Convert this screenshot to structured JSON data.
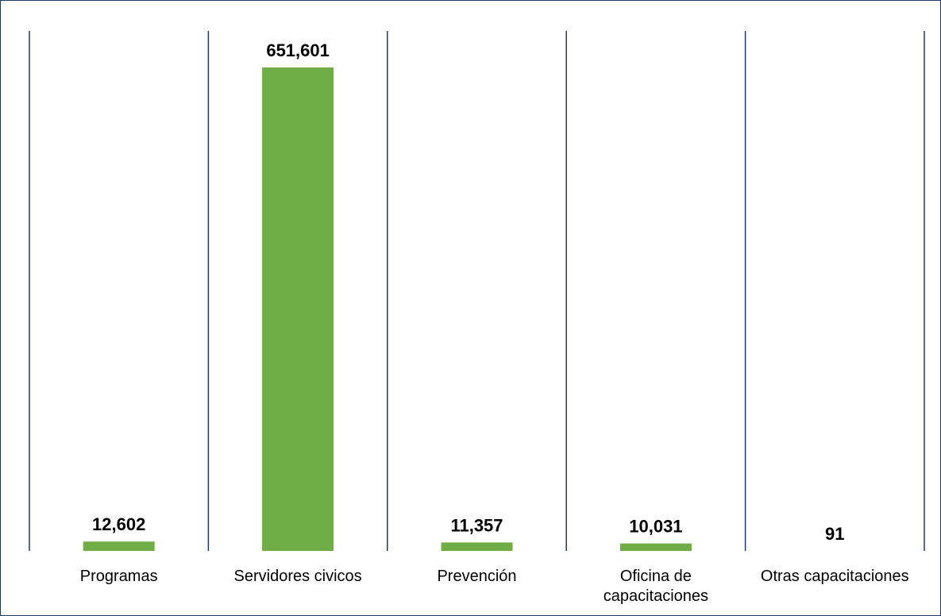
{
  "colors": {
    "bar": "#70ad47",
    "gridline": "#1f3864",
    "border": "#1f3864",
    "text": "#000000"
  },
  "chart_data": {
    "type": "bar",
    "title": "",
    "xlabel": "",
    "ylabel": "",
    "categories": [
      [
        "Programas"
      ],
      [
        "Servidores civicos"
      ],
      [
        "Prevención"
      ],
      [
        "Oficina de",
        "capacitaciones"
      ],
      [
        "Otras capacitaciones"
      ]
    ],
    "values": [
      12602,
      651601,
      11357,
      10031,
      91
    ],
    "value_labels": [
      "12,602",
      "651,601",
      "11,357",
      "10,031",
      "91"
    ],
    "ylim": [
      0,
      651601
    ],
    "grid": "vertical category separators",
    "legend": "none"
  }
}
